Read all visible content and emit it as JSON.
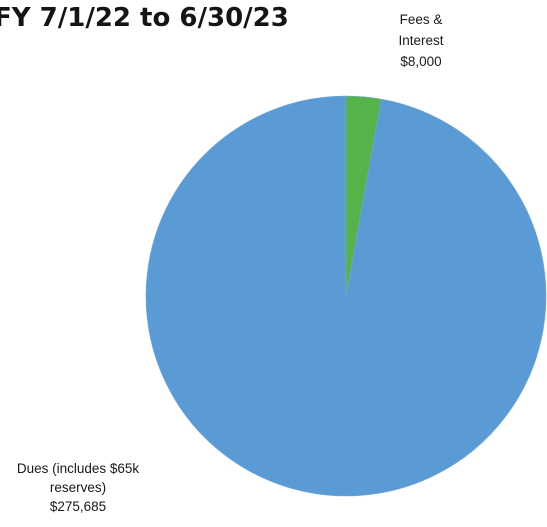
{
  "chart_data": {
    "type": "pie",
    "title": "FY 7/1/22 to 6/30/23",
    "slices": [
      {
        "label_lines": [
          "Dues (includes $65k",
          "reserves)",
          "$275,685"
        ],
        "value": 275685,
        "color": "#5b9bd5"
      },
      {
        "label_lines": [
          "Fees &",
          "Interest",
          "$8,000"
        ],
        "value": 8000,
        "color": "#55b34a"
      }
    ],
    "legend": "none"
  }
}
